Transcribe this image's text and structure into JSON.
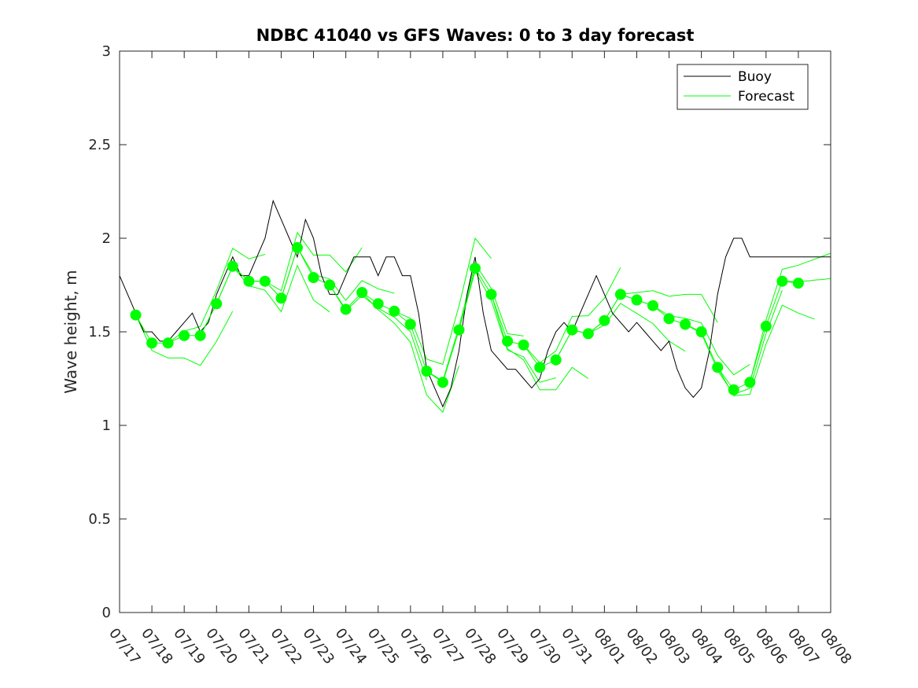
{
  "chart_data": {
    "type": "line",
    "title": "NDBC 41040 vs GFS Waves: 0 to 3 day forecast",
    "ylabel": "Wave height, m",
    "xlabel": "",
    "ylim": [
      0,
      3
    ],
    "yticks": [
      "0",
      "0.5",
      "1",
      "1.5",
      "2",
      "2.5",
      "3"
    ],
    "xlim": [
      "07/17",
      "08/08"
    ],
    "xticks": [
      "07/17",
      "07/18",
      "07/19",
      "07/20",
      "07/21",
      "07/22",
      "07/23",
      "07/24",
      "07/25",
      "07/26",
      "07/27",
      "07/28",
      "07/29",
      "07/30",
      "07/31",
      "08/01",
      "08/02",
      "08/03",
      "08/04",
      "08/05",
      "08/06",
      "08/07",
      "08/08"
    ],
    "grid": false,
    "legend": {
      "placement": "top-right",
      "entries": [
        "Buoy",
        "Forecast"
      ]
    },
    "colors": {
      "buoy": "#000000",
      "forecast": "#00ff00"
    },
    "series": [
      {
        "name": "Buoy",
        "color": "#000000",
        "x": [
          "07/17 00:00",
          "07/17 06:00",
          "07/17 12:00",
          "07/17 18:00",
          "07/18 00:00",
          "07/18 06:00",
          "07/18 12:00",
          "07/18 18:00",
          "07/19 00:00",
          "07/19 06:00",
          "07/19 12:00",
          "07/19 18:00",
          "07/20 00:00",
          "07/20 06:00",
          "07/20 12:00",
          "07/20 18:00",
          "07/21 00:00",
          "07/21 06:00",
          "07/21 12:00",
          "07/21 18:00",
          "07/22 00:00",
          "07/22 06:00",
          "07/22 12:00",
          "07/22 18:00",
          "07/23 00:00",
          "07/23 06:00",
          "07/23 12:00",
          "07/23 18:00",
          "07/24 00:00",
          "07/24 06:00",
          "07/24 12:00",
          "07/24 18:00",
          "07/25 00:00",
          "07/25 06:00",
          "07/25 12:00",
          "07/25 18:00",
          "07/26 00:00",
          "07/26 06:00",
          "07/26 12:00",
          "07/26 18:00",
          "07/27 00:00",
          "07/27 06:00",
          "07/27 12:00",
          "07/27 18:00",
          "07/28 00:00",
          "07/28 06:00",
          "07/28 12:00",
          "07/28 18:00",
          "07/29 00:00",
          "07/29 06:00",
          "07/29 12:00",
          "07/29 18:00",
          "07/30 00:00",
          "07/30 06:00",
          "07/30 12:00",
          "07/30 18:00",
          "07/31 00:00",
          "07/31 06:00",
          "07/31 12:00",
          "07/31 18:00",
          "08/01 00:00",
          "08/01 06:00",
          "08/01 12:00",
          "08/01 18:00",
          "08/02 00:00",
          "08/02 06:00",
          "08/02 12:00",
          "08/02 18:00",
          "08/03 00:00",
          "08/03 06:00",
          "08/03 12:00",
          "08/03 18:00",
          "08/04 00:00",
          "08/04 06:00",
          "08/04 12:00",
          "08/04 18:00",
          "08/05 00:00",
          "08/05 06:00",
          "08/05 12:00",
          "08/05 18:00",
          "08/06 00:00",
          "08/06 06:00",
          "08/06 12:00",
          "08/06 18:00",
          "08/07 00:00",
          "08/07 06:00",
          "08/07 12:00",
          "08/07 18:00",
          "08/08 00:00"
        ],
        "values": [
          1.8,
          1.7,
          1.6,
          1.5,
          1.5,
          1.45,
          1.45,
          1.5,
          1.55,
          1.6,
          1.5,
          1.55,
          1.7,
          1.8,
          1.9,
          1.8,
          1.8,
          1.9,
          2.0,
          2.2,
          2.1,
          2.0,
          1.9,
          2.1,
          2.0,
          1.8,
          1.7,
          1.7,
          1.8,
          1.9,
          1.9,
          1.9,
          1.8,
          1.9,
          1.9,
          1.8,
          1.8,
          1.6,
          1.3,
          1.2,
          1.1,
          1.2,
          1.4,
          1.7,
          1.9,
          1.6,
          1.4,
          1.35,
          1.3,
          1.3,
          1.25,
          1.2,
          1.25,
          1.4,
          1.5,
          1.55,
          1.5,
          1.6,
          1.7,
          1.8,
          1.7,
          1.6,
          1.55,
          1.5,
          1.55,
          1.5,
          1.45,
          1.4,
          1.45,
          1.3,
          1.2,
          1.15,
          1.2,
          1.4,
          1.7,
          1.9,
          2.0,
          2.0,
          1.9,
          1.9,
          1.9,
          1.9,
          1.9,
          1.9,
          1.9,
          1.9,
          1.9,
          1.9,
          1.9
        ]
      },
      {
        "name": "Forecast",
        "color": "#00ff00",
        "x": [
          "07/17 12:00",
          "07/18 00:00",
          "07/18 12:00",
          "07/19 00:00",
          "07/19 12:00",
          "07/20 00:00",
          "07/20 12:00",
          "07/21 00:00",
          "07/21 12:00",
          "07/22 00:00",
          "07/22 12:00",
          "07/23 00:00",
          "07/23 12:00",
          "07/24 00:00",
          "07/24 12:00",
          "07/25 00:00",
          "07/25 12:00",
          "07/26 00:00",
          "07/26 12:00",
          "07/27 00:00",
          "07/27 12:00",
          "07/28 00:00",
          "07/28 12:00",
          "07/29 00:00",
          "07/29 12:00",
          "07/30 00:00",
          "07/30 12:00",
          "07/31 00:00",
          "07/31 12:00",
          "08/01 00:00",
          "08/01 12:00",
          "08/02 00:00",
          "08/02 12:00",
          "08/03 00:00",
          "08/03 12:00",
          "08/04 00:00",
          "08/04 12:00",
          "08/05 00:00",
          "08/05 12:00",
          "08/06 00:00",
          "08/06 12:00",
          "08/07 00:00"
        ],
        "values": [
          1.59,
          1.44,
          1.44,
          1.48,
          1.48,
          1.65,
          1.85,
          1.77,
          1.77,
          1.68,
          1.95,
          1.79,
          1.75,
          1.62,
          1.71,
          1.65,
          1.61,
          1.54,
          1.29,
          1.23,
          1.51,
          1.84,
          1.7,
          1.45,
          1.43,
          1.31,
          1.35,
          1.51,
          1.49,
          1.56,
          1.7,
          1.67,
          1.64,
          1.57,
          1.54,
          1.5,
          1.31,
          1.19,
          1.23,
          1.53,
          1.77,
          1.76
        ]
      }
    ]
  }
}
